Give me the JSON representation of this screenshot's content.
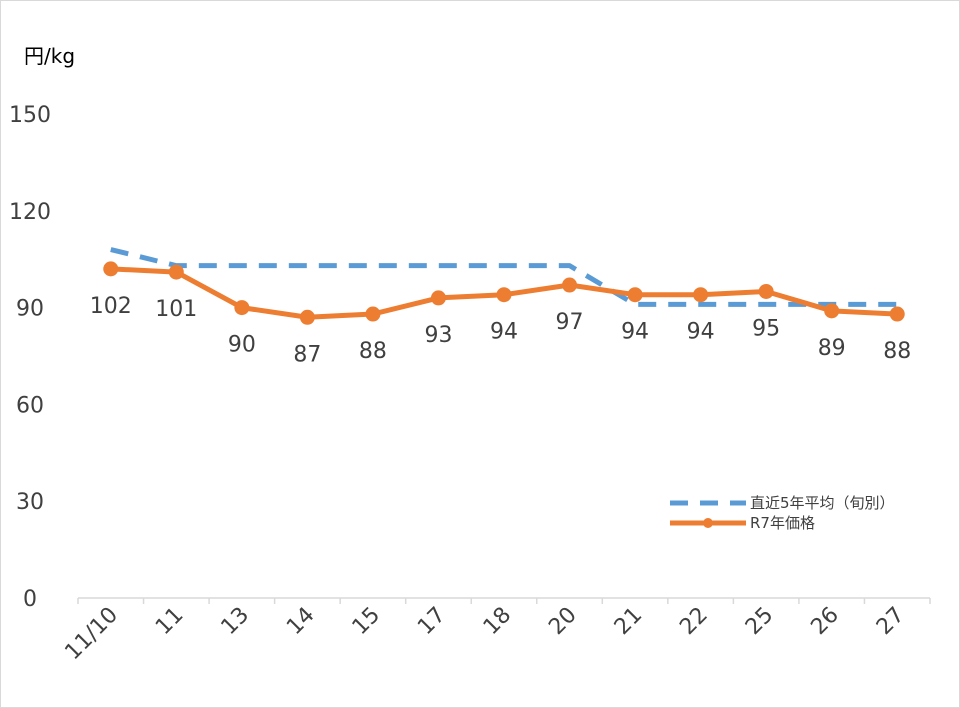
{
  "chart_data": {
    "type": "line",
    "ylabel": "円/kg",
    "ylim": [
      0,
      150
    ],
    "yticks": [
      0,
      30,
      60,
      90,
      120,
      150
    ],
    "categories": [
      "11/10",
      "11",
      "13",
      "14",
      "15",
      "17",
      "18",
      "20",
      "21",
      "22",
      "25",
      "26",
      "27"
    ],
    "series": [
      {
        "name": "直近5年平均（旬別）",
        "style": "dashed",
        "color": "#5b9bd5",
        "values": [
          108,
          103,
          103,
          103,
          103,
          103,
          103,
          103,
          91,
          91,
          91,
          91,
          91
        ]
      },
      {
        "name": "R7年価格",
        "style": "solid-markers",
        "color": "#ed7d31",
        "values": [
          102,
          101,
          90,
          87,
          88,
          93,
          94,
          97,
          94,
          94,
          95,
          89,
          88
        ],
        "data_labels": [
          "102",
          "101",
          "90",
          "87",
          "88",
          "93",
          "94",
          "97",
          "94",
          "94",
          "95",
          "89",
          "88"
        ]
      }
    ],
    "legend_position": "right"
  }
}
